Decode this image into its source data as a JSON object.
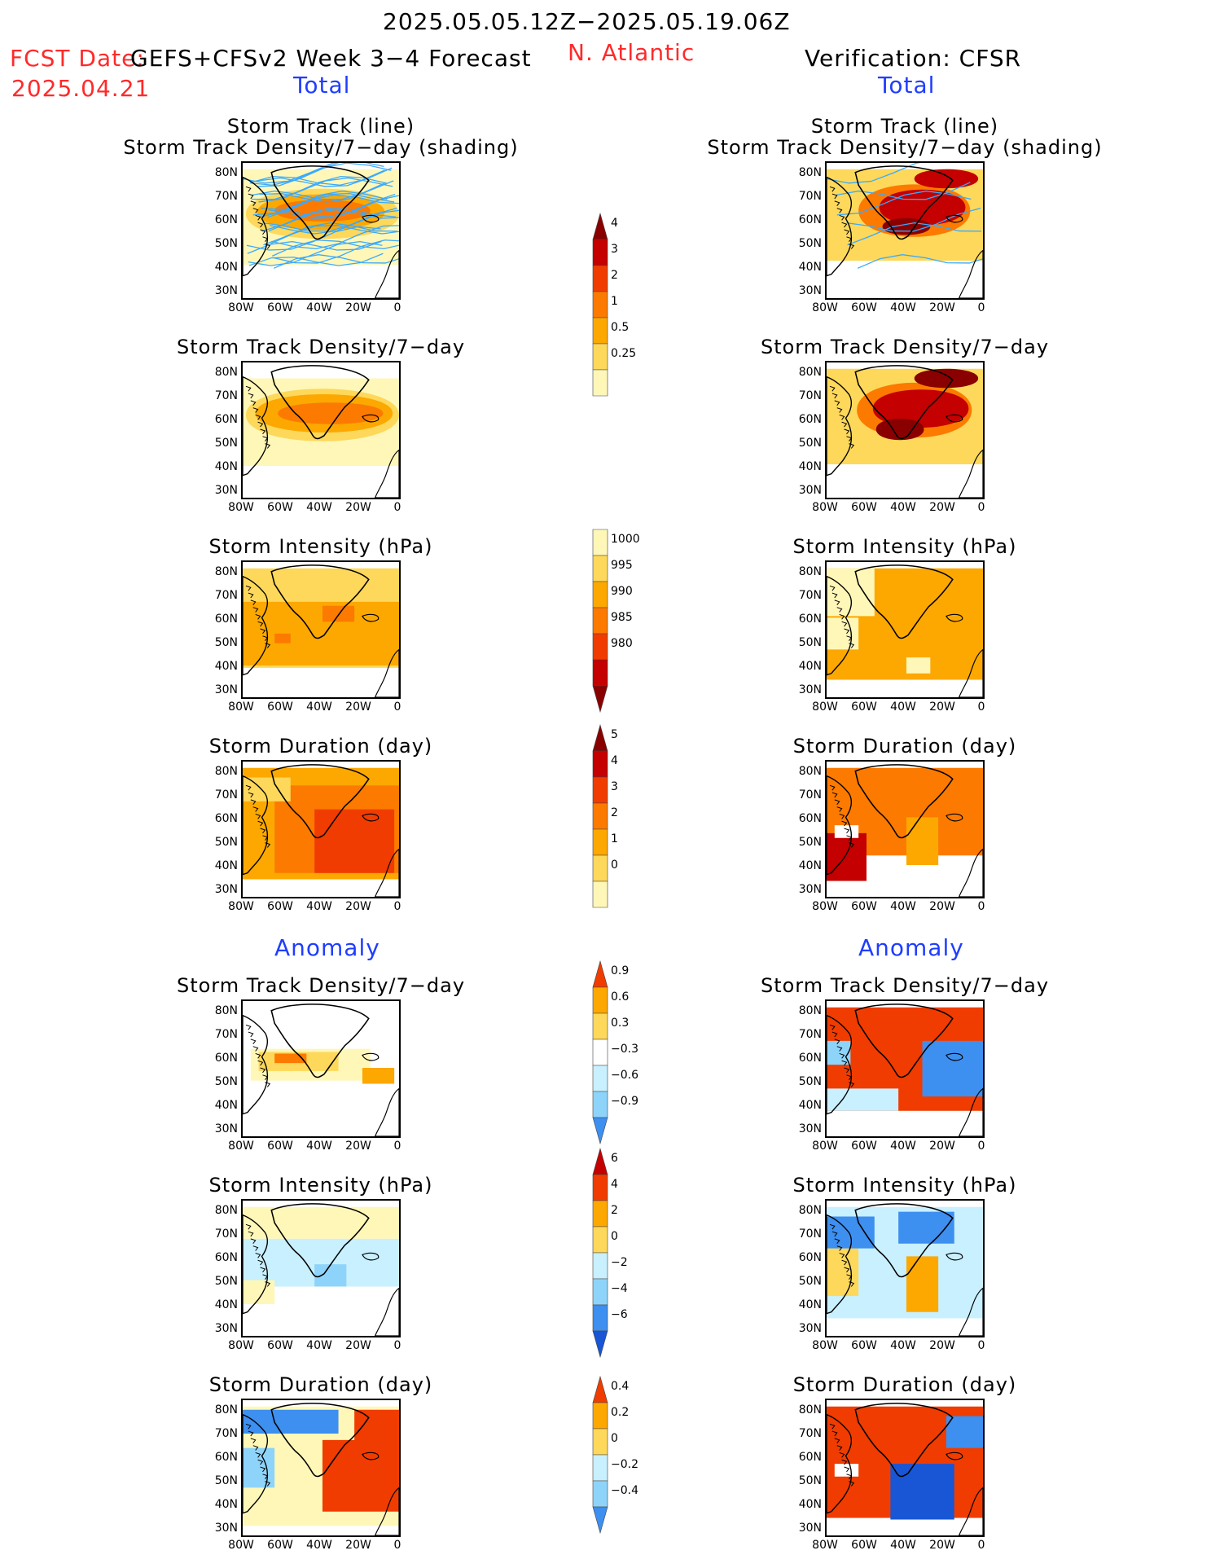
{
  "header": {
    "date_range": "2025.05.05.12Z−2025.05.19.06Z",
    "fcst_label": "FCST Date:",
    "model": "GEFS+CFSv2 Week 3−4 Forecast",
    "region": "N. Atlantic",
    "verification": "Verification: CFSR",
    "fcst_date": "2025.04.21",
    "total_left": "Total",
    "total_right": "Total",
    "anomaly_left": "Anomaly",
    "anomaly_right": "Anomaly"
  },
  "panel_titles": {
    "track_line": "Storm Track (line)",
    "track_density_shading": "Storm Track Density/7−day (shading)",
    "track_density": "Storm Track Density/7−day",
    "intensity": "Storm Intensity (hPa)",
    "duration": "Storm Duration (day)"
  },
  "axes": {
    "lat_ticks": [
      "80N",
      "70N",
      "60N",
      "50N",
      "40N",
      "30N"
    ],
    "lon_ticks": [
      "80W",
      "60W",
      "40W",
      "20W",
      "0"
    ]
  },
  "colors": {
    "c1": "#fff7b8",
    "c2": "#fdd85a",
    "c3": "#fca800",
    "c4": "#fc7a00",
    "c5": "#f03c00",
    "c6": "#c40000",
    "c7": "#8a0000",
    "n1": "#c8f0ff",
    "n2": "#8ed4fa",
    "n3": "#3d8ff0",
    "n4": "#1856d6",
    "track": "#39a9ff"
  },
  "chart_data": [
    {
      "type": "heatmap",
      "panel": "forecast-total-track-density-with-tracks",
      "colorbar": "density"
    },
    {
      "type": "heatmap",
      "panel": "forecast-total-track-density",
      "colorbar": "density"
    },
    {
      "type": "heatmap",
      "panel": "forecast-total-intensity",
      "colorbar": "intensity"
    },
    {
      "type": "heatmap",
      "panel": "forecast-total-duration",
      "colorbar": "duration"
    },
    {
      "type": "heatmap",
      "panel": "forecast-anomaly-track-density",
      "colorbar": "density_anom"
    },
    {
      "type": "heatmap",
      "panel": "forecast-anomaly-intensity",
      "colorbar": "intensity_anom"
    },
    {
      "type": "heatmap",
      "panel": "forecast-anomaly-duration",
      "colorbar": "duration_anom"
    },
    {
      "type": "heatmap",
      "panel": "verification-total-track-density-with-tracks",
      "colorbar": "density"
    },
    {
      "type": "heatmap",
      "panel": "verification-total-track-density",
      "colorbar": "density"
    },
    {
      "type": "heatmap",
      "panel": "verification-total-intensity",
      "colorbar": "intensity"
    },
    {
      "type": "heatmap",
      "panel": "verification-total-duration",
      "colorbar": "duration"
    },
    {
      "type": "heatmap",
      "panel": "verification-anomaly-track-density",
      "colorbar": "density_anom"
    },
    {
      "type": "heatmap",
      "panel": "verification-anomaly-intensity",
      "colorbar": "intensity_anom"
    },
    {
      "type": "heatmap",
      "panel": "verification-anomaly-duration",
      "colorbar": "duration_anom"
    }
  ],
  "colorbars": {
    "density": {
      "labels": [
        "4",
        "3",
        "2",
        "1",
        "0.5",
        "0.25"
      ]
    },
    "intensity": {
      "labels": [
        "1000",
        "995",
        "990",
        "985",
        "980"
      ]
    },
    "duration": {
      "labels": [
        "5",
        "4",
        "3",
        "2",
        "1",
        "0"
      ]
    },
    "density_anom": {
      "labels": [
        "0.9",
        "0.6",
        "0.3",
        "−0.3",
        "−0.6",
        "−0.9"
      ]
    },
    "intensity_anom": {
      "labels": [
        "6",
        "4",
        "2",
        "0",
        "−2",
        "−4",
        "−6"
      ]
    },
    "duration_anom": {
      "labels": [
        "0.4",
        "0.2",
        "0",
        "−0.2",
        "−0.4"
      ]
    }
  }
}
